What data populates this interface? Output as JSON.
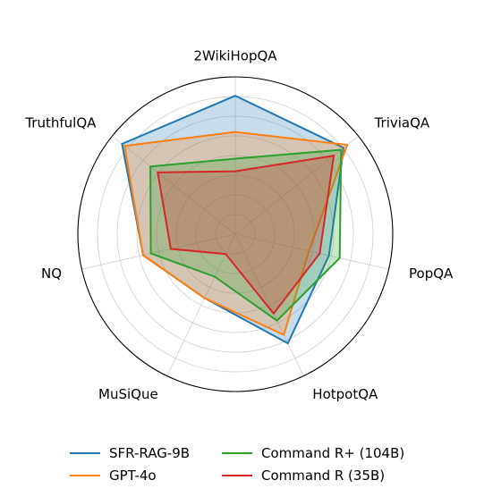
{
  "chart_data": {
    "type": "radar",
    "axes": [
      "2WikiHopQA",
      "TriviaQA",
      "PopQA",
      "HotpotQA",
      "MuSiQue",
      "NQ",
      "TruthfulQA"
    ],
    "rlim": [
      0,
      1
    ],
    "grid": true,
    "legend_position": "bottom",
    "series": [
      {
        "name": "SFR-RAG-9B",
        "color": "#1f77b4",
        "fill": "#1f77b4",
        "values": [
          0.88,
          0.88,
          0.61,
          0.77,
          0.45,
          0.6,
          0.92
        ]
      },
      {
        "name": "GPT-4o",
        "color": "#ff7f0e",
        "fill": "#ff7f0e",
        "values": [
          0.65,
          0.91,
          0.48,
          0.71,
          0.45,
          0.6,
          0.9
        ]
      },
      {
        "name": "Command R+ (104B)",
        "color": "#2ca02c",
        "fill": "#2ca02c",
        "values": [
          0.48,
          0.86,
          0.68,
          0.61,
          0.3,
          0.55,
          0.69
        ]
      },
      {
        "name": "Command R (35B)",
        "color": "#d62728",
        "fill": "#d62728",
        "values": [
          0.4,
          0.8,
          0.55,
          0.56,
          0.14,
          0.42,
          0.63
        ]
      }
    ]
  }
}
